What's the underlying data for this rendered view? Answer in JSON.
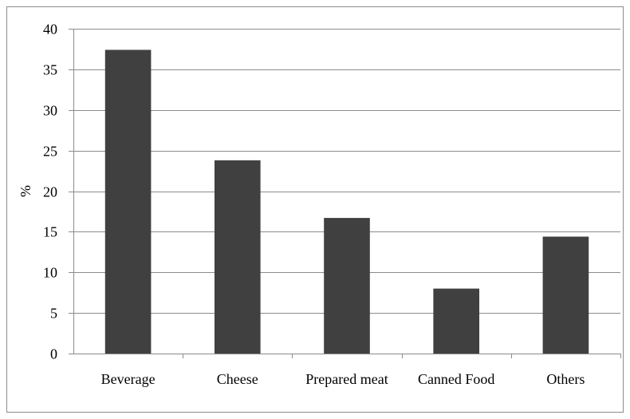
{
  "chart_data": {
    "type": "bar",
    "categories": [
      "Beverage",
      "Cheese",
      "Prepared meat",
      "Canned Food",
      "Others"
    ],
    "values": [
      37.4,
      23.8,
      16.7,
      8.0,
      14.4
    ],
    "title": "",
    "xlabel": "",
    "ylabel": "%",
    "ylim": [
      0,
      40
    ],
    "ytick_step": 5,
    "grid": true,
    "bar_color": "#404040",
    "grid_color": "#8c8c8c"
  }
}
